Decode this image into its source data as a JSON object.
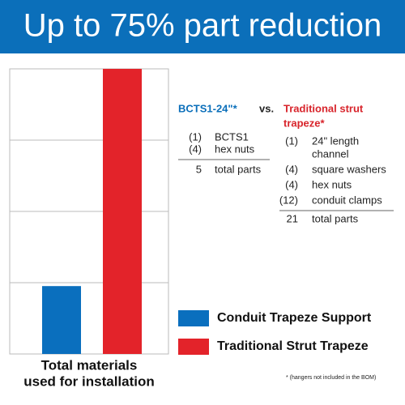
{
  "title": "Up to 75% part reduction",
  "chart_data": {
    "type": "bar",
    "categories": [
      null
    ],
    "series": [
      {
        "name": "Conduit Trapeze Support",
        "color": "#0a6fbe",
        "values": [
          5
        ]
      },
      {
        "name": "Traditional Strut Trapeze",
        "color": "#e3232a",
        "values": [
          21
        ]
      }
    ],
    "xlabel": [
      "Total materials",
      "used for installation"
    ],
    "ylim": [
      0,
      21
    ],
    "yticks": [
      0,
      5.25,
      10.5,
      15.75,
      21
    ],
    "grid": true
  },
  "comparison": {
    "vs": "vs.",
    "left": {
      "header": [
        "BCTS1-24\"*"
      ],
      "items": [
        {
          "qty": "(1)",
          "text": [
            "BCTS1"
          ]
        },
        {
          "qty": "(4)",
          "text": [
            "hex nuts"
          ]
        }
      ],
      "total": {
        "qty": "5",
        "text": "total parts"
      }
    },
    "right": {
      "header": [
        "Traditional strut",
        "trapeze*"
      ],
      "items": [
        {
          "qty": "(1)",
          "text": [
            "24\" length",
            "channel"
          ]
        },
        {
          "qty": "(4)",
          "text": [
            "square washers"
          ]
        },
        {
          "qty": "(4)",
          "text": [
            "hex nuts"
          ]
        },
        {
          "qty": "(12)",
          "text": [
            "conduit clamps"
          ]
        }
      ],
      "total": {
        "qty": "21",
        "text": "total parts"
      }
    }
  },
  "footnote": "* (hangers not included in the BOM)"
}
